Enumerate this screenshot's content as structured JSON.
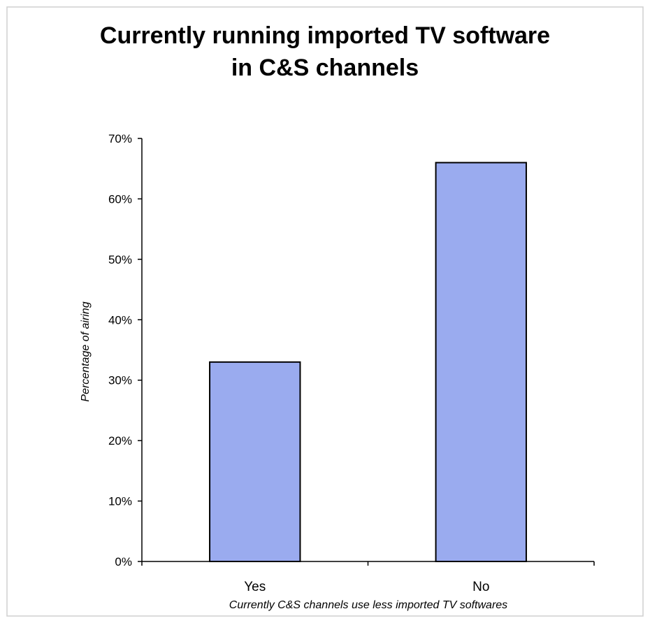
{
  "chart_data": {
    "type": "bar",
    "title_lines": [
      "Currently running imported TV software",
      "in C&S channels"
    ],
    "categories": [
      "Yes",
      "No"
    ],
    "values": [
      33,
      66
    ],
    "ylabel": "Percentage of airing",
    "xlabel": "Currently C&S channels use less imported TV softwares",
    "ylim": [
      0,
      70
    ],
    "yticks": [
      "0%",
      "10%",
      "20%",
      "30%",
      "40%",
      "50%",
      "60%",
      "70%"
    ],
    "grid": false,
    "legend": "none",
    "colors": {
      "bar_fill": "#9aabef",
      "bar_stroke": "#000000",
      "axis": "#000000",
      "frame": "#cfcfcf"
    }
  }
}
